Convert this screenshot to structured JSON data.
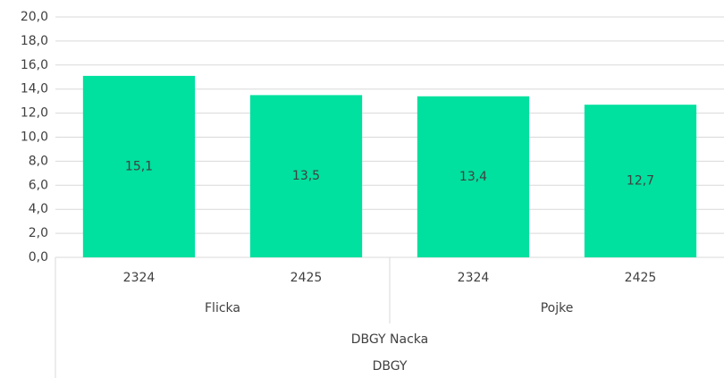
{
  "chart_data": {
    "type": "bar",
    "categories": [
      "2324",
      "2425",
      "2324",
      "2425"
    ],
    "groups": [
      "Flicka",
      "Pojke"
    ],
    "supergroups": [
      "DBGY Nacka"
    ],
    "topgroups": [
      "DBGY"
    ],
    "values": [
      15.1,
      13.5,
      13.4,
      12.7
    ],
    "value_labels": [
      "15,1",
      "13,5",
      "13,4",
      "12,7"
    ],
    "color": "#00e09e",
    "ylim": [
      0,
      20
    ],
    "yticks": [
      {
        "value": 0,
        "label": "0,0"
      },
      {
        "value": 2,
        "label": "2,0"
      },
      {
        "value": 4,
        "label": "4,0"
      },
      {
        "value": 6,
        "label": "6,0"
      },
      {
        "value": 8,
        "label": "8,0"
      },
      {
        "value": 10,
        "label": "10,0"
      },
      {
        "value": 12,
        "label": "12,0"
      },
      {
        "value": 14,
        "label": "14,0"
      },
      {
        "value": 16,
        "label": "16,0"
      },
      {
        "value": 18,
        "label": "18,0"
      },
      {
        "value": 20,
        "label": "20,0"
      }
    ],
    "grid": true
  }
}
